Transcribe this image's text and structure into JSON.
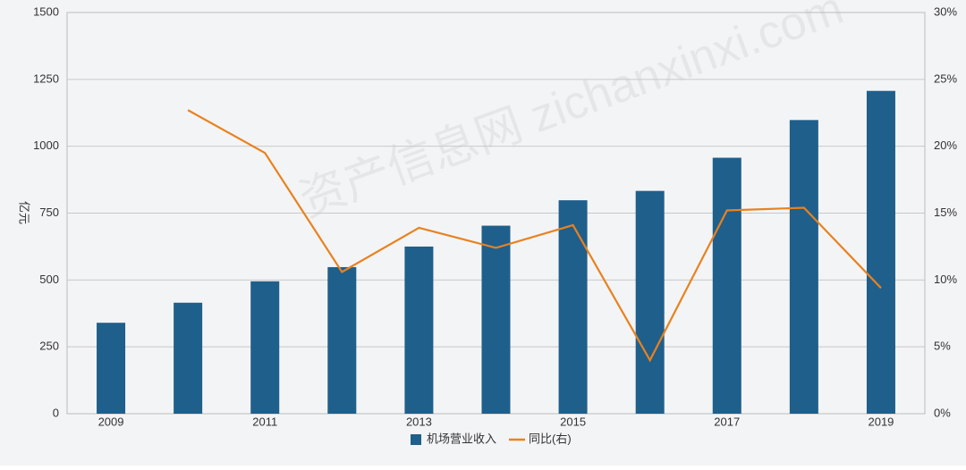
{
  "chart_data": {
    "type": "bar-line",
    "y_label": "亿元",
    "watermark": "资产信息网 zichanxinxi.com",
    "categories": [
      "2009",
      null,
      "2011",
      null,
      "2013",
      null,
      "2015",
      null,
      "2017",
      null,
      "2019"
    ],
    "series": [
      {
        "name": "机场营业收入",
        "type": "bar",
        "color": "#1f5f8b",
        "values": [
          340,
          415,
          495,
          548,
          625,
          703,
          798,
          833,
          957,
          1098,
          1207
        ]
      },
      {
        "name": "同比(右)",
        "type": "line",
        "axis": "y2",
        "color": "#e8821e",
        "values": [
          null,
          22.7,
          19.5,
          10.6,
          13.9,
          12.4,
          14.1,
          4.0,
          15.2,
          15.4,
          9.4
        ]
      }
    ],
    "ylim": [
      0,
      1500
    ],
    "yticks": [
      0,
      250,
      500,
      750,
      1000,
      1250,
      1500
    ],
    "y2lim": [
      0,
      30
    ],
    "y2ticks": [
      {
        "value": 0,
        "label": "0%"
      },
      {
        "value": 5,
        "label": "5%"
      },
      {
        "value": 10,
        "label": "10%"
      },
      {
        "value": 15,
        "label": "15%"
      },
      {
        "value": 20,
        "label": "20%"
      },
      {
        "value": 25,
        "label": "25%"
      },
      {
        "value": 30,
        "label": "30%"
      }
    ],
    "grid": true,
    "legend": "bottom"
  }
}
